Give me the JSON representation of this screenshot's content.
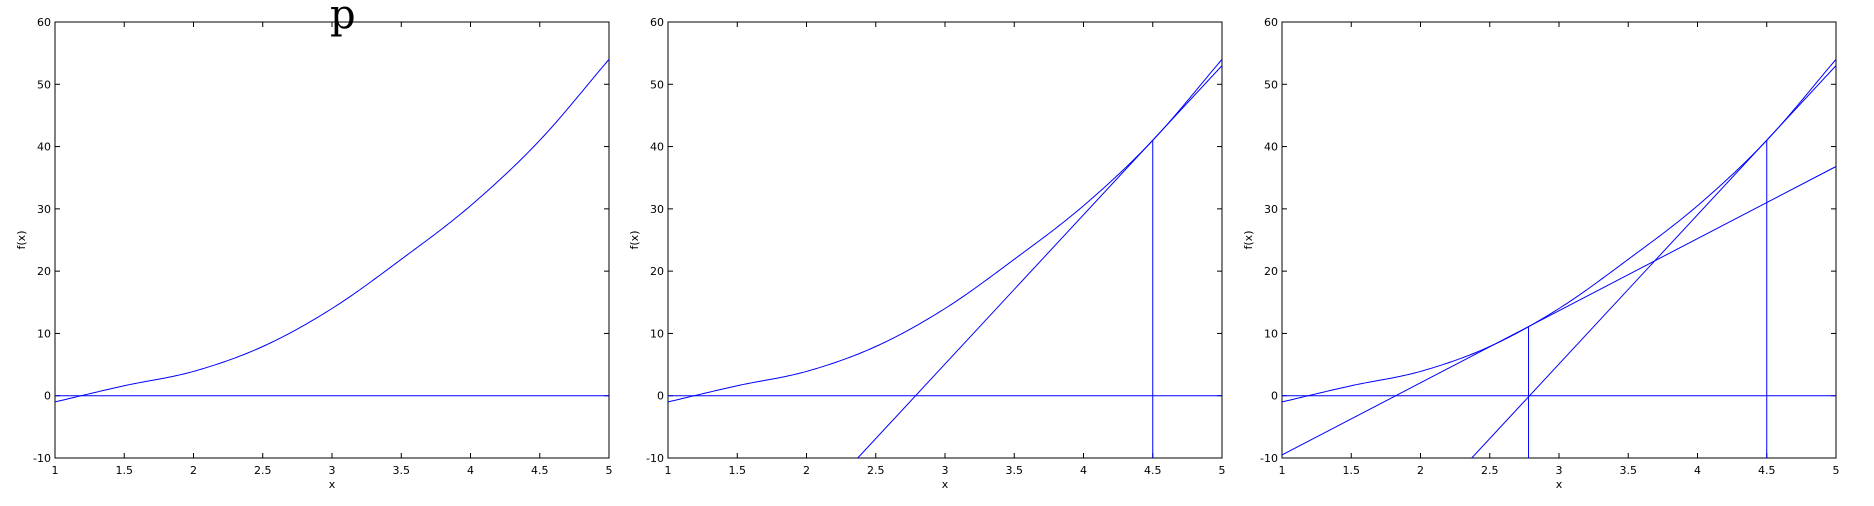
{
  "header_fragment": "p",
  "chart_data": [
    {
      "type": "line",
      "xlabel": "x",
      "ylabel": "f(x)",
      "xlim": [
        1,
        5
      ],
      "ylim": [
        -10,
        60
      ],
      "xticks": [
        "1",
        "1.5",
        "2",
        "2.5",
        "3",
        "3.5",
        "4",
        "4.5",
        "5"
      ],
      "yticks": [
        "-10",
        "0",
        "10",
        "20",
        "30",
        "40",
        "50",
        "60"
      ],
      "series": [
        {
          "kind": "curve",
          "x": [
            1,
            1.5,
            2,
            2.5,
            3,
            3.5,
            4,
            4.5,
            5
          ],
          "y": [
            -1,
            1.6,
            3.9,
            7.9,
            14,
            21.9,
            30.5,
            41,
            54
          ]
        },
        {
          "kind": "hline",
          "y": 0
        }
      ],
      "color": "#0000ff"
    },
    {
      "type": "line",
      "xlabel": "x",
      "ylabel": "f(x)",
      "xlim": [
        1,
        5
      ],
      "ylim": [
        -10,
        60
      ],
      "xticks": [
        "1",
        "1.5",
        "2",
        "2.5",
        "3",
        "3.5",
        "4",
        "4.5",
        "5"
      ],
      "yticks": [
        "-10",
        "0",
        "10",
        "20",
        "30",
        "40",
        "50",
        "60"
      ],
      "series": [
        {
          "kind": "curve",
          "x": [
            1,
            1.5,
            2,
            2.5,
            3,
            3.5,
            4,
            4.5,
            5
          ],
          "y": [
            -1,
            1.6,
            3.9,
            7.9,
            14,
            21.9,
            30.5,
            41,
            54
          ]
        },
        {
          "kind": "hline",
          "y": 0
        },
        {
          "kind": "segment",
          "x": [
            2.37,
            5
          ],
          "y": [
            -10,
            53
          ]
        },
        {
          "kind": "vline",
          "x": 4.5,
          "y": [
            -10,
            41
          ]
        }
      ],
      "color": "#0000ff"
    },
    {
      "type": "line",
      "xlabel": "x",
      "ylabel": "f(x)",
      "xlim": [
        1,
        5
      ],
      "ylim": [
        -10,
        60
      ],
      "xticks": [
        "1",
        "1.5",
        "2",
        "2.5",
        "3",
        "3.5",
        "4",
        "4.5",
        "5"
      ],
      "yticks": [
        "-10",
        "0",
        "10",
        "20",
        "30",
        "40",
        "50",
        "60"
      ],
      "series": [
        {
          "kind": "curve",
          "x": [
            1,
            1.5,
            2,
            2.5,
            3,
            3.5,
            4,
            4.5,
            5
          ],
          "y": [
            -1,
            1.6,
            3.9,
            7.9,
            14,
            21.9,
            30.5,
            41,
            54
          ]
        },
        {
          "kind": "hline",
          "y": 0
        },
        {
          "kind": "segment",
          "x": [
            2.37,
            5
          ],
          "y": [
            -10,
            53
          ]
        },
        {
          "kind": "vline",
          "x": 4.5,
          "y": [
            -10,
            41
          ]
        },
        {
          "kind": "segment",
          "x": [
            1,
            5
          ],
          "y": [
            -9.5,
            36.8
          ]
        },
        {
          "kind": "vline",
          "x": 2.78,
          "y": [
            -10,
            11
          ]
        }
      ],
      "color": "#0000ff"
    }
  ]
}
